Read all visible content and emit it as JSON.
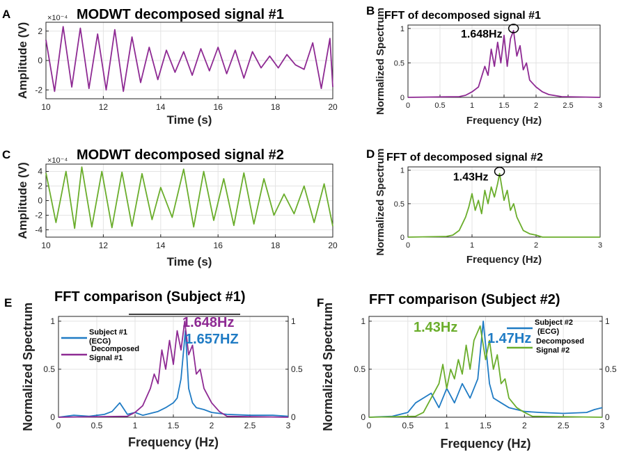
{
  "figure": {
    "colors": {
      "purple": "#8e2a93",
      "green": "#6aad2b",
      "blue": "#1f7bc4",
      "black": "#222222",
      "grid": "#e3e3e3"
    }
  },
  "chart_data": [
    {
      "id": "A",
      "panel_letter": "A",
      "type": "line",
      "title": "MODWT decomposed signal #1",
      "xlabel": "Time (s)",
      "ylabel": "Amplitude (V)",
      "exponent_label": "×10⁻⁴",
      "xlim": [
        10,
        20
      ],
      "ylim": [
        -2.6,
        2.6
      ],
      "xticks": [
        10,
        12,
        14,
        16,
        18,
        20
      ],
      "xtick_labels": [
        "10",
        "12",
        "14",
        "16",
        "18",
        "20"
      ],
      "yticks": [
        -2,
        0,
        2
      ],
      "ytick_labels": [
        "-2",
        "0",
        "2"
      ],
      "series": [
        {
          "name": "MODWT decomposed signal #1",
          "color": "purple",
          "x": [
            10.0,
            10.3,
            10.6,
            10.9,
            11.2,
            11.5,
            11.8,
            12.1,
            12.4,
            12.7,
            13.0,
            13.3,
            13.6,
            13.9,
            14.2,
            14.5,
            14.8,
            15.1,
            15.4,
            15.7,
            16.0,
            16.3,
            16.6,
            16.9,
            17.2,
            17.5,
            17.8,
            18.1,
            18.4,
            18.7,
            19.0,
            19.3,
            19.6,
            19.9,
            20.0
          ],
          "y": [
            1.4,
            -2.1,
            2.3,
            -1.8,
            2.2,
            -1.9,
            1.8,
            -2.0,
            2.1,
            -2.1,
            1.6,
            -1.5,
            0.9,
            -1.3,
            0.7,
            -0.8,
            0.6,
            -1.0,
            0.8,
            -0.7,
            0.9,
            -0.9,
            0.7,
            -1.2,
            0.6,
            -0.5,
            0.3,
            -0.5,
            0.4,
            -0.3,
            -0.6,
            1.2,
            -1.9,
            1.5,
            -1.8
          ]
        }
      ]
    },
    {
      "id": "B",
      "panel_letter": "B",
      "type": "line",
      "title": "FFT of decomposed signal #1",
      "xlabel": "Frequency (Hz)",
      "ylabel": "Normalized Spectrum",
      "xlim": [
        0,
        3
      ],
      "ylim": [
        0,
        1.05
      ],
      "xticks": [
        0,
        0.5,
        1,
        1.5,
        2,
        2.5,
        3
      ],
      "xtick_labels": [
        "0",
        "0.5",
        "1",
        "1.5",
        "2",
        "2.5",
        "3"
      ],
      "yticks": [
        0,
        0.5,
        1
      ],
      "ytick_labels": [
        "0",
        "0.5",
        "1"
      ],
      "annotation": {
        "text": "1.648Hz",
        "peak_x": 1.648,
        "peak_y": 0.97
      },
      "series": [
        {
          "name": "FFT of decomposed signal #1",
          "color": "purple",
          "x": [
            0.0,
            0.8,
            0.9,
            1.0,
            1.1,
            1.15,
            1.2,
            1.25,
            1.3,
            1.35,
            1.4,
            1.45,
            1.5,
            1.55,
            1.6,
            1.648,
            1.7,
            1.75,
            1.8,
            1.85,
            1.9,
            1.95,
            2.0,
            2.1,
            2.2,
            2.4,
            3.0
          ],
          "y": [
            0.0,
            0.01,
            0.03,
            0.08,
            0.15,
            0.3,
            0.45,
            0.32,
            0.7,
            0.45,
            0.8,
            0.5,
            0.9,
            0.45,
            0.85,
            0.97,
            0.6,
            0.75,
            0.4,
            0.5,
            0.25,
            0.2,
            0.15,
            0.08,
            0.04,
            0.01,
            0.0
          ]
        }
      ]
    },
    {
      "id": "C",
      "panel_letter": "C",
      "type": "line",
      "title": "MODWT decomposed signal #2",
      "xlabel": "Time (s)",
      "ylabel": "Amplitude (V)",
      "exponent_label": "×10⁻⁴",
      "xlim": [
        10,
        20
      ],
      "ylim": [
        -5,
        5
      ],
      "xticks": [
        10,
        12,
        14,
        16,
        18,
        20
      ],
      "xtick_labels": [
        "10",
        "12",
        "14",
        "16",
        "18",
        "20"
      ],
      "yticks": [
        -4,
        -2,
        0,
        2,
        4
      ],
      "ytick_labels": [
        "-4",
        "-2",
        "0",
        "2",
        "4"
      ],
      "series": [
        {
          "name": "MODWT decomposed signal #2",
          "color": "green",
          "x": [
            10.0,
            10.35,
            10.7,
            11.0,
            11.25,
            11.6,
            11.95,
            12.3,
            12.65,
            13.0,
            13.35,
            13.7,
            14.0,
            14.4,
            14.8,
            15.15,
            15.5,
            15.85,
            16.2,
            16.55,
            16.9,
            17.25,
            17.6,
            17.95,
            18.3,
            18.65,
            19.0,
            19.35,
            19.7,
            20.0
          ],
          "y": [
            3.8,
            -3.0,
            4.0,
            -3.8,
            4.6,
            -3.6,
            4.0,
            -3.7,
            3.9,
            -3.5,
            3.7,
            -2.6,
            1.8,
            -2.3,
            4.3,
            -3.6,
            4.0,
            -2.7,
            3.0,
            -3.4,
            3.8,
            -3.2,
            3.0,
            -2.0,
            0.9,
            -1.8,
            2.0,
            -3.0,
            2.3,
            -3.5
          ]
        }
      ]
    },
    {
      "id": "D",
      "panel_letter": "D",
      "type": "line",
      "title": "FFT of decomposed signal #2",
      "xlabel": "Frequency (Hz)",
      "ylabel": "Normalized Spectrum",
      "xlim": [
        0,
        3
      ],
      "ylim": [
        0,
        1.05
      ],
      "xticks": [
        0,
        1,
        2,
        3
      ],
      "xtick_labels": [
        "0",
        "1",
        "2",
        "3"
      ],
      "yticks": [
        0,
        0.5,
        1
      ],
      "ytick_labels": [
        "0",
        "0.5",
        "1"
      ],
      "annotation": {
        "text": "1.43Hz",
        "peak_x": 1.43,
        "peak_y": 0.95
      },
      "series": [
        {
          "name": "FFT of decomposed signal #2",
          "color": "green",
          "x": [
            0.0,
            0.6,
            0.7,
            0.8,
            0.85,
            0.9,
            0.95,
            1.0,
            1.05,
            1.1,
            1.15,
            1.2,
            1.25,
            1.3,
            1.35,
            1.4,
            1.43,
            1.5,
            1.55,
            1.6,
            1.65,
            1.7,
            1.75,
            1.8,
            1.9,
            2.0,
            2.1,
            3.0
          ],
          "y": [
            0.0,
            0.01,
            0.03,
            0.1,
            0.2,
            0.3,
            0.45,
            0.65,
            0.4,
            0.55,
            0.35,
            0.7,
            0.5,
            0.75,
            0.6,
            0.8,
            0.95,
            0.55,
            0.7,
            0.4,
            0.5,
            0.3,
            0.2,
            0.1,
            0.05,
            0.03,
            0.0,
            0.0
          ]
        }
      ]
    },
    {
      "id": "E",
      "panel_letter": "E",
      "type": "line",
      "title": "FFT comparison (Subject #1)",
      "xlabel": "Frequency (Hz)",
      "ylabel": "Normalized Spectrum",
      "xlim": [
        0,
        3
      ],
      "ylim": [
        0,
        1.05
      ],
      "xticks": [
        0,
        0.5,
        1,
        1.5,
        2,
        2.5,
        3
      ],
      "xtick_labels": [
        "0",
        "0.5",
        "1",
        "1.5",
        "2",
        "2.5",
        "3"
      ],
      "yticks": [
        0,
        0.5,
        1
      ],
      "ytick_labels": [
        "0",
        "0.5",
        "1"
      ],
      "right_yticks": [
        0,
        0.5,
        1
      ],
      "right_ytick_labels": [
        "0",
        "0.5",
        "1"
      ],
      "peak_labels": [
        {
          "text": "1.648Hz",
          "color": "purple"
        },
        {
          "text": "1.657HZ",
          "color": "blue"
        }
      ],
      "legend": [
        {
          "label_lines": [
            "Subject #1",
            "(ECG)"
          ],
          "color": "blue"
        },
        {
          "label_lines": [
            "Decomposed",
            "Signal #1"
          ],
          "color": "purple"
        }
      ],
      "series": [
        {
          "name": "Subject #1 (ECG)",
          "color": "blue",
          "x": [
            0.0,
            0.2,
            0.4,
            0.6,
            0.7,
            0.8,
            0.9,
            1.0,
            1.1,
            1.2,
            1.3,
            1.4,
            1.5,
            1.55,
            1.6,
            1.657,
            1.7,
            1.75,
            1.8,
            1.9,
            2.0,
            2.2,
            2.5,
            2.8,
            3.0
          ],
          "y": [
            0.0,
            0.02,
            0.01,
            0.03,
            0.06,
            0.15,
            0.03,
            0.05,
            0.02,
            0.04,
            0.06,
            0.1,
            0.15,
            0.2,
            0.4,
            0.9,
            0.3,
            0.15,
            0.1,
            0.08,
            0.05,
            0.03,
            0.02,
            0.02,
            0.01
          ]
        },
        {
          "name": "Decomposed Signal #1",
          "color": "purple",
          "x": [
            0.0,
            0.9,
            1.0,
            1.1,
            1.2,
            1.25,
            1.3,
            1.35,
            1.4,
            1.45,
            1.5,
            1.55,
            1.6,
            1.648,
            1.7,
            1.75,
            1.8,
            1.85,
            1.9,
            2.0,
            2.1,
            2.2,
            3.0
          ],
          "y": [
            0.0,
            0.01,
            0.05,
            0.12,
            0.3,
            0.45,
            0.35,
            0.7,
            0.5,
            0.8,
            0.55,
            0.9,
            0.7,
            1.0,
            0.65,
            0.75,
            0.45,
            0.5,
            0.3,
            0.15,
            0.06,
            0.01,
            0.0
          ]
        }
      ]
    },
    {
      "id": "F",
      "panel_letter": "F",
      "type": "line",
      "title": "FFT comparison (Subject #2)",
      "xlabel": "Frequency (Hz)",
      "ylabel": "Normalized Spectrum",
      "xlim": [
        0,
        3
      ],
      "ylim": [
        0,
        1.05
      ],
      "xticks": [
        0,
        0.5,
        1,
        1.5,
        2,
        2.5,
        3
      ],
      "xtick_labels": [
        "0",
        "0.5",
        "1",
        "1.5",
        "2",
        "2.5",
        "3"
      ],
      "yticks": [
        0,
        0.5,
        1
      ],
      "ytick_labels": [
        "0",
        "0.5",
        "1"
      ],
      "right_yticks": [
        0,
        0.5,
        1
      ],
      "right_ytick_labels": [
        "0",
        "0.5",
        "1"
      ],
      "peak_labels": [
        {
          "text": "1.43Hz",
          "color": "green"
        },
        {
          "text": "1.47Hz",
          "color": "blue"
        }
      ],
      "legend": [
        {
          "label_lines": [
            "Subject #2",
            "(ECG)"
          ],
          "color": "blue"
        },
        {
          "label_lines": [
            "Decomposed",
            "Signal #2"
          ],
          "color": "green"
        }
      ],
      "series": [
        {
          "name": "Subject #2 (ECG)",
          "color": "blue",
          "x": [
            0.0,
            0.3,
            0.5,
            0.6,
            0.7,
            0.8,
            0.9,
            1.0,
            1.1,
            1.2,
            1.3,
            1.4,
            1.47,
            1.55,
            1.6,
            1.7,
            1.8,
            1.9,
            2.0,
            2.2,
            2.5,
            2.8,
            2.9,
            3.0
          ],
          "y": [
            0.0,
            0.01,
            0.05,
            0.15,
            0.2,
            0.25,
            0.1,
            0.3,
            0.15,
            0.35,
            0.2,
            0.4,
            1.0,
            0.35,
            0.2,
            0.15,
            0.1,
            0.08,
            0.06,
            0.05,
            0.04,
            0.05,
            0.08,
            0.1
          ]
        },
        {
          "name": "Decomposed Signal #2",
          "color": "green",
          "x": [
            0.0,
            0.6,
            0.7,
            0.8,
            0.9,
            0.95,
            1.0,
            1.05,
            1.1,
            1.15,
            1.2,
            1.25,
            1.3,
            1.35,
            1.43,
            1.5,
            1.55,
            1.6,
            1.65,
            1.7,
            1.75,
            1.8,
            1.9,
            2.0,
            2.1,
            3.0
          ],
          "y": [
            0.0,
            0.01,
            0.05,
            0.2,
            0.35,
            0.55,
            0.3,
            0.5,
            0.4,
            0.6,
            0.45,
            0.75,
            0.5,
            0.8,
            0.95,
            0.6,
            0.8,
            0.5,
            0.65,
            0.35,
            0.4,
            0.2,
            0.1,
            0.05,
            0.01,
            0.0
          ]
        }
      ]
    }
  ]
}
